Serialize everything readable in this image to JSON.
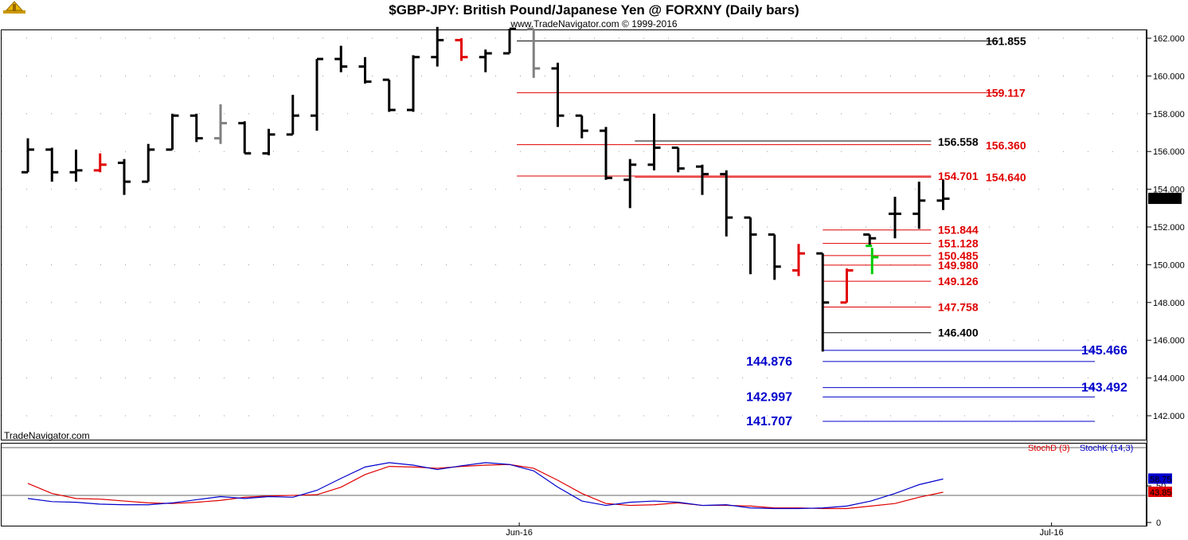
{
  "header": {
    "title": "$GBP-JPY:  British Pound/Japanese Yen @ FORXNY  (Daily bars)",
    "copyright": "www.TradeNavigator.com © 1999-2016",
    "watermark": "TradeNavigator.com"
  },
  "colors": {
    "bar": "#000000",
    "down_red": "#e00000",
    "neutral_gray": "#808080",
    "green": "#00cc00",
    "blue": "#0000cc",
    "ref_line": "#666666"
  },
  "chart_data": [
    {
      "type": "ohlc",
      "title": "$GBP-JPY:  British Pound/Japanese Yen @ FORXNY  (Daily bars)",
      "ylim": [
        140.8,
        162.8
      ],
      "y_ticks": [
        "162.000",
        "160.000",
        "158.000",
        "156.000",
        "154.000",
        "152.000",
        "150.000",
        "148.000",
        "146.000",
        "144.000",
        "142.000"
      ],
      "x_tick_labels": [
        {
          "label": "Jun-16",
          "bar": 21.4
        },
        {
          "label": "Jul-16",
          "bar": 43.5
        }
      ],
      "bars": [
        {
          "o": 154.9,
          "h": 156.7,
          "l": 154.9,
          "c": 156.1,
          "color": "black"
        },
        {
          "o": 156.1,
          "h": 156.2,
          "l": 154.4,
          "c": 154.9,
          "color": "black"
        },
        {
          "o": 154.9,
          "h": 156.1,
          "l": 154.4,
          "c": 155.0,
          "color": "black"
        },
        {
          "o": 155.0,
          "h": 155.9,
          "l": 154.9,
          "c": 155.3,
          "color": "red"
        },
        {
          "o": 155.4,
          "h": 155.6,
          "l": 153.7,
          "c": 154.4,
          "color": "black"
        },
        {
          "o": 154.4,
          "h": 156.4,
          "l": 154.4,
          "c": 156.1,
          "color": "black"
        },
        {
          "o": 156.1,
          "h": 158.0,
          "l": 156.1,
          "c": 157.9,
          "color": "black"
        },
        {
          "o": 157.9,
          "h": 158.0,
          "l": 156.5,
          "c": 156.7,
          "color": "black"
        },
        {
          "o": 156.7,
          "h": 158.5,
          "l": 156.4,
          "c": 157.5,
          "color": "gray"
        },
        {
          "o": 157.5,
          "h": 157.6,
          "l": 155.9,
          "c": 155.9,
          "color": "black"
        },
        {
          "o": 155.9,
          "h": 157.2,
          "l": 155.8,
          "c": 156.9,
          "color": "black"
        },
        {
          "o": 156.9,
          "h": 159.0,
          "l": 156.9,
          "c": 157.9,
          "color": "black"
        },
        {
          "o": 157.9,
          "h": 160.9,
          "l": 157.1,
          "c": 160.9,
          "color": "black"
        },
        {
          "o": 160.9,
          "h": 161.6,
          "l": 160.2,
          "c": 160.5,
          "color": "black"
        },
        {
          "o": 160.5,
          "h": 161.0,
          "l": 159.6,
          "c": 159.7,
          "color": "black"
        },
        {
          "o": 159.8,
          "h": 159.8,
          "l": 158.1,
          "c": 158.2,
          "color": "black"
        },
        {
          "o": 158.2,
          "h": 161.1,
          "l": 158.1,
          "c": 161.0,
          "color": "black"
        },
        {
          "o": 161.0,
          "h": 162.6,
          "l": 160.5,
          "c": 161.9,
          "color": "black"
        },
        {
          "o": 161.9,
          "h": 162.0,
          "l": 160.8,
          "c": 161.0,
          "color": "red"
        },
        {
          "o": 161.0,
          "h": 161.4,
          "l": 160.2,
          "c": 161.2,
          "color": "black"
        },
        {
          "o": 161.2,
          "h": 162.5,
          "l": 161.2,
          "c": 162.5,
          "color": "black"
        },
        {
          "o": 162.5,
          "h": 162.5,
          "l": 159.9,
          "c": 160.4,
          "color": "gray"
        },
        {
          "o": 160.4,
          "h": 160.7,
          "l": 157.3,
          "c": 157.9,
          "color": "black"
        },
        {
          "o": 157.9,
          "h": 157.9,
          "l": 156.7,
          "c": 157.1,
          "color": "black"
        },
        {
          "o": 157.1,
          "h": 157.3,
          "l": 154.5,
          "c": 154.6,
          "color": "black"
        },
        {
          "o": 154.5,
          "h": 155.6,
          "l": 153.0,
          "c": 155.3,
          "color": "black"
        },
        {
          "o": 155.3,
          "h": 158.0,
          "l": 155.0,
          "c": 156.2,
          "color": "black"
        },
        {
          "o": 156.2,
          "h": 156.2,
          "l": 154.9,
          "c": 155.1,
          "color": "black"
        },
        {
          "o": 155.2,
          "h": 155.3,
          "l": 153.7,
          "c": 154.8,
          "color": "black"
        },
        {
          "o": 154.8,
          "h": 155.0,
          "l": 151.5,
          "c": 152.5,
          "color": "black"
        },
        {
          "o": 152.5,
          "h": 152.5,
          "l": 149.5,
          "c": 151.6,
          "color": "black"
        },
        {
          "o": 151.6,
          "h": 151.6,
          "l": 149.2,
          "c": 149.9,
          "color": "black"
        },
        {
          "o": 149.7,
          "h": 151.1,
          "l": 149.4,
          "c": 150.6,
          "color": "red"
        },
        {
          "o": 150.6,
          "h": 150.6,
          "l": 145.4,
          "c": 148.0,
          "color": "black"
        },
        {
          "o": 148.0,
          "h": 149.8,
          "l": 148.0,
          "c": 149.7,
          "color": "red"
        },
        {
          "o": 151.6,
          "h": 151.6,
          "l": 151.0,
          "c": 151.4,
          "color": "black"
        },
        {
          "o": 151.0,
          "h": 150.9,
          "l": 149.5,
          "c": 150.4,
          "color": "green"
        },
        {
          "o": 152.7,
          "h": 153.6,
          "l": 151.4,
          "c": 152.7,
          "color": "black"
        },
        {
          "o": 152.7,
          "h": 154.4,
          "l": 151.9,
          "c": 153.4,
          "color": "black"
        },
        {
          "o": 153.4,
          "h": 154.5,
          "l": 152.9,
          "c": 153.5,
          "color": "black"
        }
      ],
      "bar_positions": [
        1.0,
        2.0,
        3.0,
        4.0,
        5.0,
        6.0,
        7.0,
        8.0,
        9.0,
        10.0,
        11.0,
        12.0,
        13.0,
        14.0,
        15.0,
        16.0,
        17.0,
        18.0,
        19.0,
        20.0,
        21.0,
        22.0,
        23.0,
        24.0,
        25.0,
        26.0,
        27.0,
        28.0,
        29.0,
        30.0,
        31.0,
        32.0,
        33.0,
        34.0,
        35.0,
        35.95,
        36.05,
        37.0,
        38.0,
        39.0
      ],
      "last_price": "153.516",
      "levels": [
        {
          "value": "161.855",
          "y": 161.855,
          "color": "black",
          "from_bar": 21.3,
          "to_bar": 41.3
        },
        {
          "value": "159.117",
          "y": 159.117,
          "color": "red",
          "from_bar": 21.3,
          "to_bar": 41.3
        },
        {
          "value": "156.558",
          "y": 156.558,
          "color": "black",
          "from_bar": 26.2,
          "to_bar": 38.5
        },
        {
          "value": "156.360",
          "y": 156.36,
          "color": "red",
          "from_bar": 21.3,
          "to_bar": 38.5
        },
        {
          "value": "154.701",
          "y": 154.701,
          "color": "red",
          "from_bar": 21.3,
          "to_bar": 38.5
        },
        {
          "value": "154.640",
          "y": 154.64,
          "color": "red",
          "from_bar": 26.2,
          "to_bar": 38.5
        },
        {
          "value": "151.844",
          "y": 151.844,
          "color": "red",
          "from_bar": 34.0,
          "to_bar": 38.5
        },
        {
          "value": "151.128",
          "y": 151.128,
          "color": "red",
          "from_bar": 34.0,
          "to_bar": 38.5
        },
        {
          "value": "150.485",
          "y": 150.485,
          "color": "red",
          "from_bar": 34.0,
          "to_bar": 38.5
        },
        {
          "value": "149.980",
          "y": 149.98,
          "color": "red",
          "from_bar": 34.0,
          "to_bar": 38.5
        },
        {
          "value": "149.126",
          "y": 149.126,
          "color": "red",
          "from_bar": 34.0,
          "to_bar": 38.5
        },
        {
          "value": "147.758",
          "y": 147.758,
          "color": "red",
          "from_bar": 34.0,
          "to_bar": 38.5
        },
        {
          "value": "146.400",
          "y": 146.4,
          "color": "black",
          "from_bar": 34.0,
          "to_bar": 38.5
        },
        {
          "value": "145.466",
          "y": 145.466,
          "color": "blue",
          "from_bar": 34.0,
          "to_bar": 45.3
        },
        {
          "value": "144.876",
          "y": 144.876,
          "color": "blue",
          "from_bar": 34.0,
          "to_bar": 45.3
        },
        {
          "value": "143.492",
          "y": 143.492,
          "color": "blue",
          "from_bar": 34.0,
          "to_bar": 45.3
        },
        {
          "value": "142.997",
          "y": 142.997,
          "color": "blue",
          "from_bar": 34.0,
          "to_bar": 45.3
        },
        {
          "value": "141.707",
          "y": 141.707,
          "color": "blue",
          "from_bar": 34.0,
          "to_bar": 45.3
        }
      ]
    },
    {
      "type": "line",
      "title": "Stochastic",
      "ylim": [
        0,
        100
      ],
      "y_ticks": [
        "50",
        "0"
      ],
      "ref_lines": [
        80,
        20
      ],
      "series": [
        {
          "name": "StochD (3)",
          "color": "red",
          "last": "43.85",
          "values": [
            52,
            36,
            28,
            27,
            24,
            21,
            20,
            22,
            25,
            30,
            32,
            33,
            34,
            46,
            66,
            79,
            78,
            76,
            79,
            81,
            82,
            76,
            57,
            36,
            20,
            17,
            18,
            21,
            17,
            17,
            16,
            13,
            13,
            12,
            12,
            16,
            20,
            30,
            38
          ]
        },
        {
          "name": "StochK (14,3)",
          "color": "blue",
          "last": "58.75",
          "values": [
            28,
            23,
            22,
            19,
            18,
            18,
            21,
            26,
            31,
            28,
            31,
            30,
            41,
            60,
            78,
            85,
            81,
            74,
            80,
            85,
            82,
            72,
            46,
            24,
            17,
            22,
            24,
            22,
            17,
            18,
            13,
            12,
            12,
            13,
            16,
            24,
            36,
            50,
            59
          ]
        }
      ]
    }
  ]
}
